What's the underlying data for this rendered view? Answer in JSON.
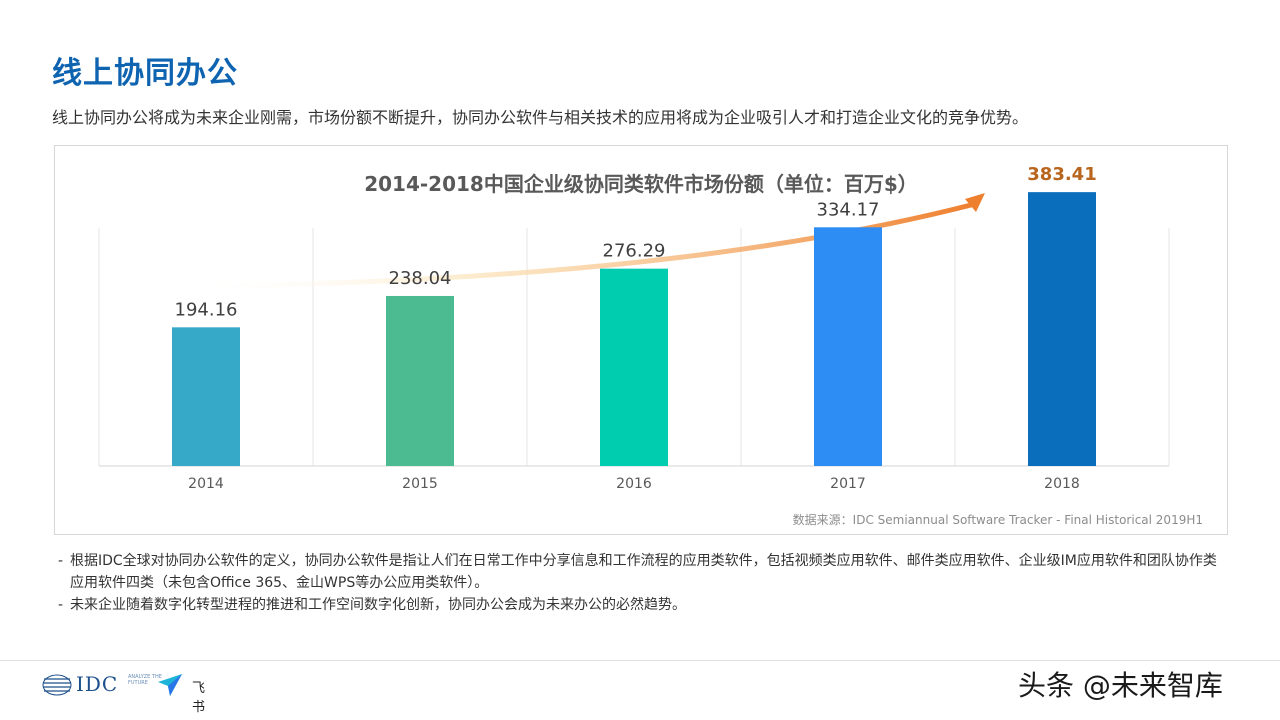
{
  "page": {
    "title": "线上协同办公",
    "subtitle": "线上协同办公将成为未来企业刚需，市场份额不断提升，协同办公软件与相关技术的应用将成为企业吸引人才和打造企业文化的竞争优势。"
  },
  "chart_data": {
    "type": "bar",
    "title": "2014-2018中国企业级协同类软件市场份额（单位：百万$）",
    "categories": [
      "2014",
      "2015",
      "2016",
      "2017",
      "2018"
    ],
    "values": [
      194.16,
      238.04,
      276.29,
      334.17,
      383.41
    ],
    "value_labels": [
      "194.16",
      "238.04",
      "276.29",
      "334.17",
      "383.41"
    ],
    "bar_colors": [
      "#36a9c9",
      "#4dbb92",
      "#00ccb0",
      "#2e8df5",
      "#0a6ebd"
    ],
    "highlight_label_color": "#b8651e",
    "ylim": [
      0,
      420
    ],
    "grid": "vertical category separators",
    "annotation": "upward trend arrow",
    "source": "数据来源：IDC Semiannual Software Tracker - Final Historical 2019H1"
  },
  "notes": [
    {
      "dash": "-",
      "text": "根据IDC全球对协同办公软件的定义，协同办公软件是指让人们在日常工作中分享信息和工作流程的应用类软件，包括视频类应用软件、邮件类应用软件、企业级IM应用软件和团队协作类应用软件四类（未包含Office 365、金山WPS等办公应用类软件）。"
    },
    {
      "dash": "-",
      "text": "未来企业随着数字化转型进程的推进和工作空间数字化创新，协同办公会成为未来办公的必然趋势。"
    }
  ],
  "footer": {
    "idc_logo_text": "IDC",
    "idc_tagline": "ANALYZE THE FUTURE",
    "feishu_text": "飞书",
    "watermark": "头条 @未来智库"
  },
  "icons": {
    "idc_mark": "idc-globe-icon",
    "feishu": "feishu-paper-plane-icon"
  }
}
